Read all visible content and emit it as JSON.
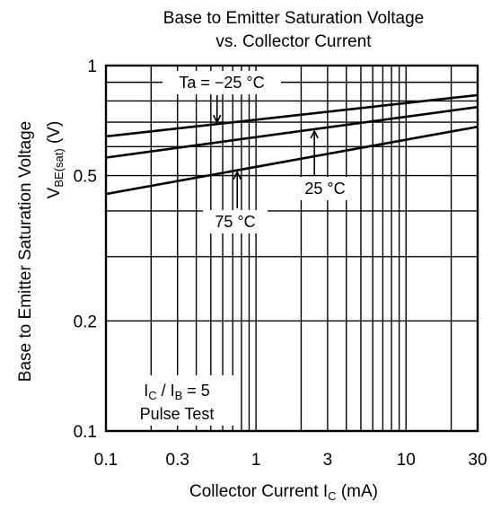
{
  "chart_data": {
    "type": "line",
    "title_lines": [
      "Base to Emitter Saturation Voltage",
      "vs. Collector Current"
    ],
    "xlabel": "Collector Current    I",
    "xlabel_sub": "C",
    "xlabel_unit": "(mA)",
    "ylabel": "Base to Emitter Saturation Voltage",
    "ylabel2": "V",
    "ylabel2_sub": "BE(sat)",
    "ylabel2_unit": "(V)",
    "x_scale": "log",
    "y_scale": "log",
    "xlim": [
      0.1,
      30
    ],
    "ylim": [
      0.1,
      1
    ],
    "x_ticks": [
      {
        "value": 0.1,
        "label": "0.1"
      },
      {
        "value": 0.3,
        "label": "0.3"
      },
      {
        "value": 1,
        "label": "1"
      },
      {
        "value": 3,
        "label": "3"
      },
      {
        "value": 10,
        "label": "10"
      },
      {
        "value": 30,
        "label": "30"
      }
    ],
    "y_ticks": [
      {
        "value": 0.1,
        "label": "0.1"
      },
      {
        "value": 0.2,
        "label": "0.2"
      },
      {
        "value": 0.5,
        "label": "0.5"
      },
      {
        "value": 1,
        "label": "1"
      }
    ],
    "grid": true,
    "series": [
      {
        "name": "Ta = −25 °C",
        "x": [
          0.1,
          30
        ],
        "y": [
          0.64,
          0.83
        ]
      },
      {
        "name": "25 °C",
        "x": [
          0.1,
          30
        ],
        "y": [
          0.56,
          0.77
        ]
      },
      {
        "name": "75 °C",
        "x": [
          0.1,
          30
        ],
        "y": [
          0.445,
          0.68
        ]
      }
    ],
    "annotations": [
      {
        "text": "Ta = −25 °C",
        "series": 0
      },
      {
        "text": "25 °C",
        "series": 1
      },
      {
        "text": "75 °C",
        "series": 2
      }
    ],
    "conditions": {
      "line1_main": "I",
      "line1_sub1": "C",
      "line1_mid": " / I",
      "line1_sub2": "B",
      "line1_end": " = 5",
      "line2": "Pulse Test"
    }
  }
}
